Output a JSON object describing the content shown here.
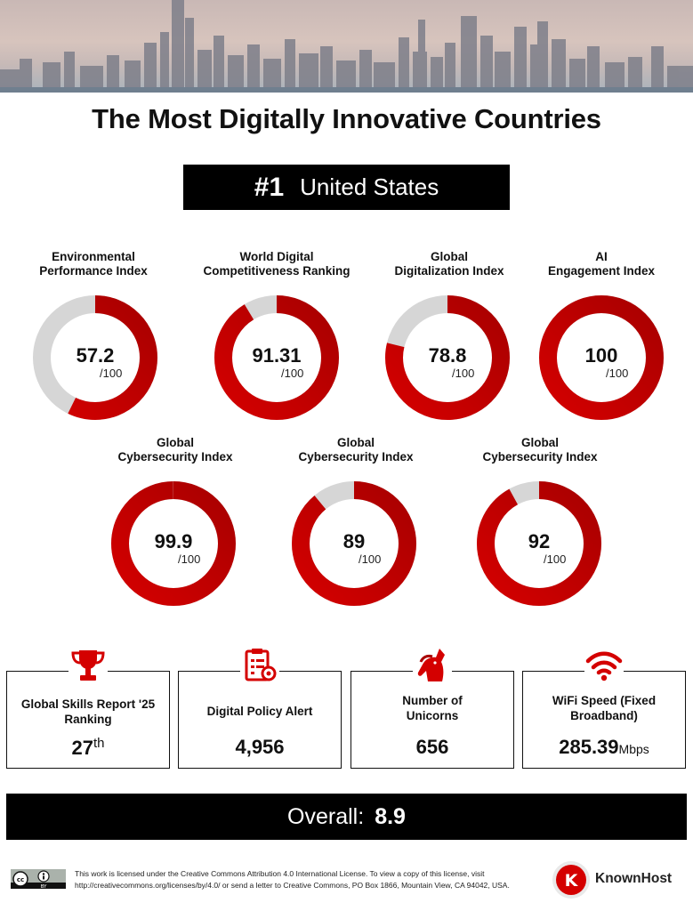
{
  "header": {
    "title": "The Most Digitally Innovative Countries",
    "rank_number": "#1",
    "country": "United States"
  },
  "colors": {
    "accent": "#d40000",
    "accent_dark": "#a80000",
    "track": "#d6d6d6",
    "bar_bg": "#000000"
  },
  "chart_data": {
    "type": "donut",
    "max": 100,
    "denominator_label": "/100",
    "items": [
      {
        "label": "Environmental\nPerformance Index",
        "value": 57.2,
        "value_text": "57.2"
      },
      {
        "label": "World Digital\nCompetitiveness Ranking",
        "value": 91.31,
        "value_text": "91.31"
      },
      {
        "label": "Global\nDigitalization Index",
        "value": 78.8,
        "value_text": "78.8"
      },
      {
        "label": "AI\nEngagement Index",
        "value": 100,
        "value_text": "100"
      },
      {
        "label": "Global\nCybersecurity Index",
        "value": 99.9,
        "value_text": "99.9"
      },
      {
        "label": "Global\nCybersecurity Index",
        "value": 89,
        "value_text": "89"
      },
      {
        "label": "Global\nCybersecurity Index",
        "value": 92,
        "value_text": "92"
      }
    ]
  },
  "stats": [
    {
      "label": "Global Skills Report '25\nRanking",
      "value": "27",
      "suffix": "th",
      "icon": "trophy-icon"
    },
    {
      "label": "Digital Policy Alert",
      "value": "4,956",
      "suffix": "",
      "icon": "policy-document-icon"
    },
    {
      "label": "Number of\nUnicorns",
      "value": "656",
      "suffix": "",
      "icon": "unicorn-icon"
    },
    {
      "label": "WiFi Speed (Fixed\nBroadband)",
      "value": "285.39",
      "unit": "Mbps",
      "icon": "wifi-icon"
    }
  ],
  "overall": {
    "label": "Overall:",
    "value": "8.9"
  },
  "footer": {
    "license": "This work is licensed under the Creative Commons Attribution 4.0 International License. To view a copy of this license, visit http://creativecommons.org/licenses/by/4.0/ or send a letter to Creative Commons, PO Box 1866, Mountain View, CA 94042, USA.",
    "cc_badge": "BY",
    "brand": "KnownHost"
  }
}
